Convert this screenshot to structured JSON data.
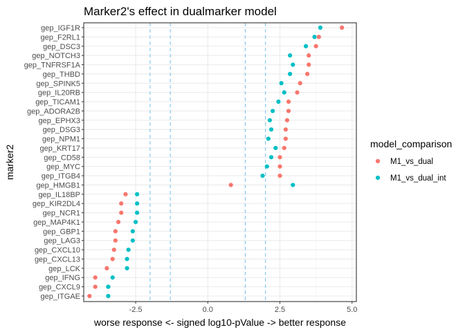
{
  "chart_data": {
    "type": "scatter",
    "title": "Marker2's effect in dualmarker model",
    "xlabel": "worse response <- signed log10-pValue -> better response",
    "ylabel": "marker2",
    "xlim": [
      -4.3,
      5.15
    ],
    "x_ticks": [
      -2.5,
      0.0,
      2.5,
      5.0
    ],
    "x_tick_labels": [
      "-2.5",
      "0.0",
      "2.5",
      "5.0"
    ],
    "grid": true,
    "reference_lines": [
      -2,
      -1.3,
      1.3,
      2
    ],
    "reference_line_color": "#7fc4f0",
    "categories": [
      "gep_ITGAE",
      "gep_CXCL9",
      "gep_IFNG",
      "gep_LCK",
      "gep_CXCL13",
      "gep_CXCL10",
      "gep_LAG3",
      "gep_GBP1",
      "gep_MAP4K1",
      "gep_NCR1",
      "gep_KIR2DL4",
      "gep_IL18BP",
      "gep_HMGB1",
      "gep_ITGB4",
      "gep_MYC",
      "gep_CD58",
      "gep_KRT17",
      "gep_NPM1",
      "gep_DSG3",
      "gep_EPHX3",
      "gep_ADORA2B",
      "gep_TICAM1",
      "gep_IL20RB",
      "gep_SPINK5",
      "gep_THBD",
      "gep_TNFRSF1A",
      "gep_NOTCH3",
      "gep_DSC3",
      "gep_F2RL1",
      "gep_IGF1R"
    ],
    "legend": {
      "title": "model_comparison",
      "position": "right"
    },
    "series": [
      {
        "name": "M1_vs_dual",
        "color": "#f8766d",
        "values": [
          -4.1,
          -3.9,
          -3.9,
          -3.5,
          -3.3,
          -3.25,
          -3.2,
          -3.2,
          -3.1,
          -3.0,
          -3.0,
          -2.85,
          0.8,
          2.5,
          2.5,
          2.5,
          2.65,
          2.7,
          2.7,
          2.75,
          2.8,
          2.8,
          3.1,
          3.2,
          3.45,
          3.5,
          3.5,
          3.75,
          3.85,
          4.65
        ]
      },
      {
        "name": "M1_vs_dual_int",
        "color": "#00bfc4",
        "values": [
          -3.45,
          -3.45,
          -3.3,
          -2.8,
          -2.8,
          -2.75,
          -2.6,
          -2.6,
          -2.5,
          -2.45,
          -2.45,
          -2.45,
          2.95,
          1.9,
          2.05,
          2.2,
          2.35,
          2.1,
          2.2,
          2.15,
          2.25,
          2.45,
          2.65,
          2.55,
          2.85,
          2.95,
          2.85,
          3.4,
          3.7,
          3.9
        ]
      }
    ]
  }
}
